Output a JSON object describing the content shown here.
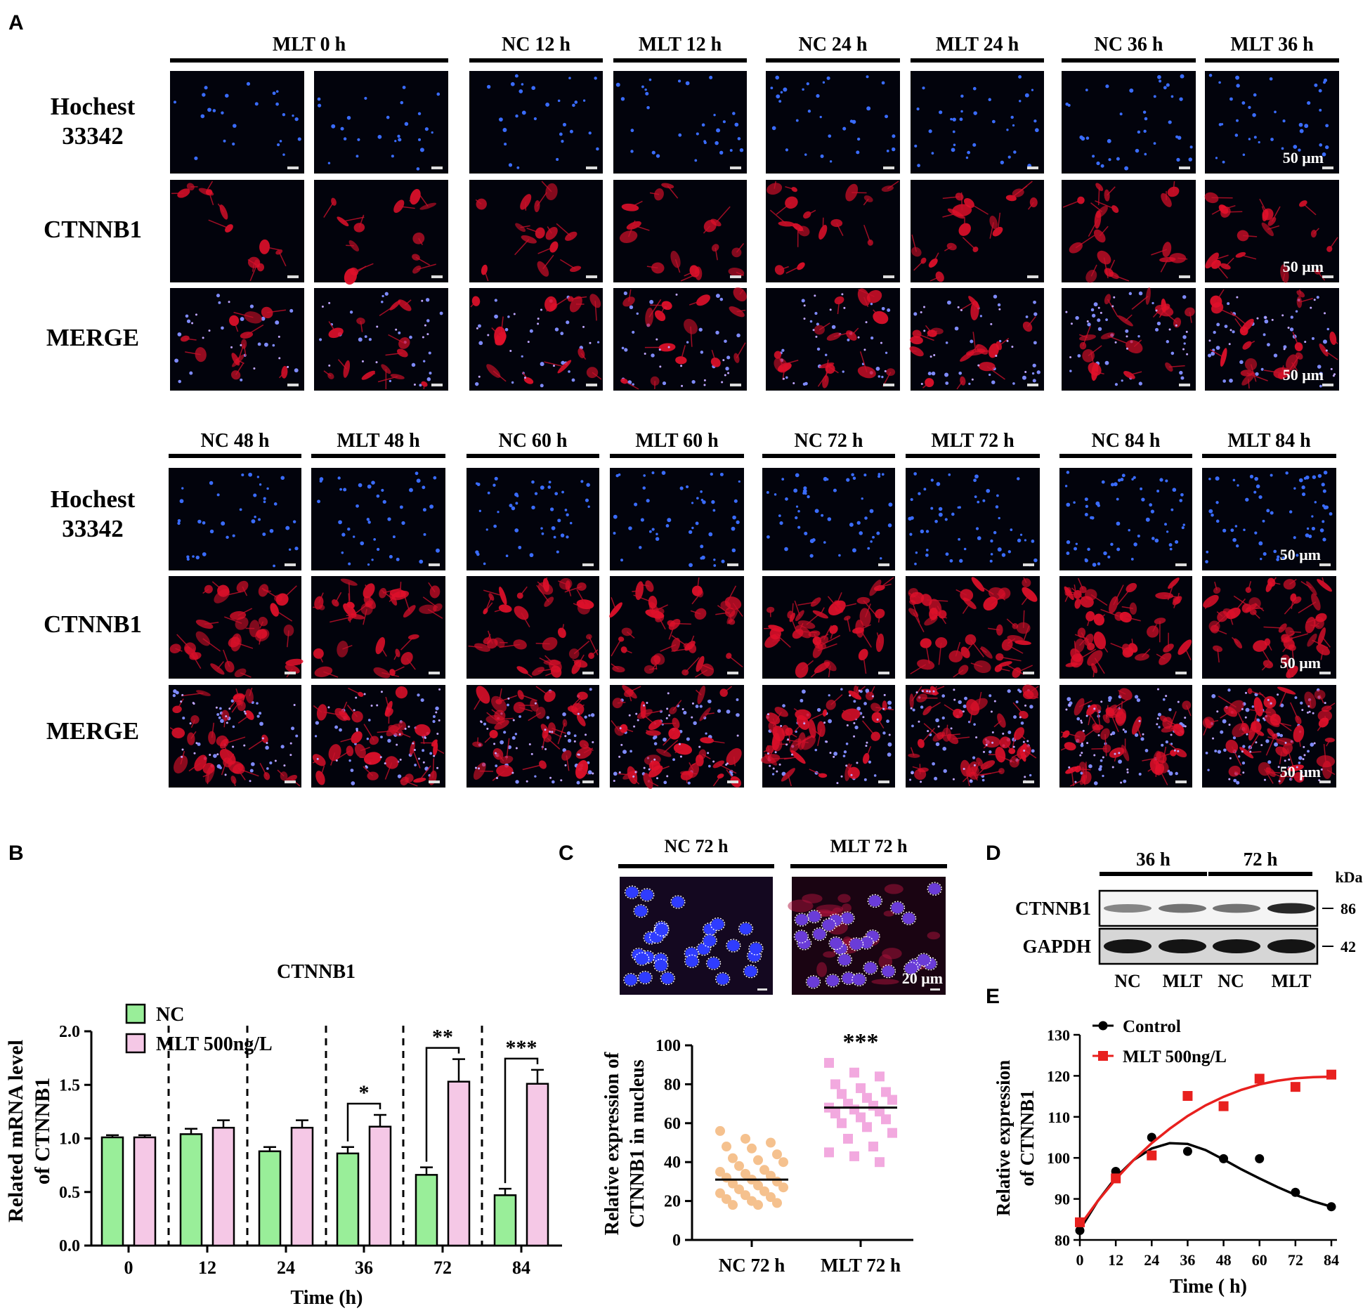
{
  "panel_letters": [
    "A",
    "B",
    "C",
    "D",
    "E"
  ],
  "panel_a": {
    "rows": [
      {
        "groups": [
          {
            "label": "MLT 0 h",
            "span": 2
          },
          {
            "label": "NC 12 h",
            "span": 1
          },
          {
            "label": "MLT 12 h",
            "span": 1
          },
          {
            "label": "NC 24 h",
            "span": 1
          },
          {
            "label": "MLT 24 h",
            "span": 1
          },
          {
            "label": "NC 36 h",
            "span": 1
          },
          {
            "label": "MLT 36 h",
            "span": 1
          }
        ],
        "channel_labels": [
          [
            "Hochest",
            "33342"
          ],
          [
            "CTNNB1"
          ],
          [
            "MERGE"
          ]
        ]
      },
      {
        "groups": [
          {
            "label": "NC 48 h",
            "span": 1
          },
          {
            "label": "MLT 48 h",
            "span": 1
          },
          {
            "label": "NC 60 h",
            "span": 1
          },
          {
            "label": "MLT 60 h",
            "span": 1
          },
          {
            "label": "NC 72 h",
            "span": 1
          },
          {
            "label": "MLT 72 h",
            "span": 1
          },
          {
            "label": "NC 84 h",
            "span": 1
          },
          {
            "label": "MLT 84 h",
            "span": 1
          }
        ],
        "channel_labels": [
          [
            "Hochest",
            "33342"
          ],
          [
            "CTNNB1"
          ],
          [
            "MERGE"
          ]
        ]
      }
    ],
    "scale_bar_label": "50 μm"
  },
  "chart_data": [
    {
      "panel": "B",
      "type": "bar",
      "title": "CTNNB1",
      "xlabel": "Time (h)",
      "ylabel": "Related mRNA level of CTNNB1",
      "ylim": [
        0,
        2.0
      ],
      "yticks": [
        "0.0",
        "0.5",
        "1.0",
        "1.5",
        "2.0"
      ],
      "categories": [
        "0",
        "12",
        "24",
        "36",
        "72",
        "84"
      ],
      "series": [
        {
          "name": "NC",
          "color": "#99ee99",
          "values": [
            1.01,
            1.04,
            0.88,
            0.86,
            0.66,
            0.47
          ],
          "errors": [
            0.02,
            0.05,
            0.04,
            0.06,
            0.07,
            0.06
          ]
        },
        {
          "name": "MLT 500ng/L",
          "color": "#f5c8e6",
          "values": [
            1.01,
            1.1,
            1.1,
            1.11,
            1.53,
            1.51
          ],
          "errors": [
            0.02,
            0.07,
            0.07,
            0.11,
            0.21,
            0.13
          ]
        }
      ],
      "significance": [
        "",
        "",
        "",
        "*",
        "**",
        "***"
      ],
      "legend": "top-left"
    },
    {
      "panel": "C",
      "type": "scatter",
      "image_headers": [
        "NC 72 h",
        "MLT 72 h"
      ],
      "scale_bar_label": "20 μm",
      "ylabel": "Relative expression of CTNNB1 in nucleus",
      "ylim": [
        0,
        100
      ],
      "yticks": [
        "0",
        "20",
        "40",
        "60",
        "80",
        "100"
      ],
      "categories": [
        "NC 72 h",
        "MLT 72 h"
      ],
      "series": [
        {
          "name": "NC 72 h",
          "color": "#f5c18e",
          "marker": "circle",
          "mean": 31,
          "values": [
            56,
            52,
            50,
            48,
            47,
            44,
            42,
            41,
            40,
            38,
            36,
            35,
            34,
            33,
            32,
            31,
            30,
            29,
            28,
            27,
            26,
            25,
            24,
            23,
            22,
            21,
            20,
            19,
            18,
            18
          ]
        },
        {
          "name": "MLT 72 h",
          "color": "#f2a9df",
          "marker": "square",
          "mean": 68,
          "values": [
            91,
            86,
            84,
            80,
            78,
            76,
            75,
            73,
            72,
            70,
            69,
            68,
            67,
            66,
            65,
            63,
            62,
            60,
            58,
            55,
            52,
            48,
            45,
            43,
            40
          ]
        }
      ],
      "significance": "***"
    },
    {
      "panel": "D",
      "type": "table",
      "time_headers": [
        "36 h",
        "72 h"
      ],
      "rows": [
        "CTNNB1",
        "GAPDH"
      ],
      "lane_labels": [
        "NC",
        "MLT",
        "NC",
        "MLT"
      ],
      "unit_label": "kDa",
      "markers": [
        "86",
        "42"
      ],
      "band_intensity": {
        "CTNNB1": [
          0.35,
          0.45,
          0.45,
          0.85
        ],
        "GAPDH": [
          0.95,
          0.95,
          0.95,
          0.95
        ]
      }
    },
    {
      "panel": "E",
      "type": "line",
      "xlabel": "Time ( h)",
      "ylabel": "Relative expression of CTNNB1",
      "xlim": [
        0,
        84
      ],
      "ylim": [
        80,
        130
      ],
      "xticks": [
        "0",
        "12",
        "24",
        "36",
        "48",
        "60",
        "72",
        "84"
      ],
      "yticks": [
        "80",
        "90",
        "100",
        "110",
        "120",
        "130"
      ],
      "series": [
        {
          "name": "Control",
          "color": "#000000",
          "marker": "circle",
          "x": [
            0,
            12,
            24,
            36,
            48,
            60,
            72,
            84
          ],
          "y": [
            82.3,
            96.7,
            105.0,
            101.6,
            99.8,
            99.8,
            91.6,
            88.1
          ],
          "fit": [
            [
              0,
              82.5
            ],
            [
              6,
              89.5
            ],
            [
              12,
              95.2
            ],
            [
              18,
              99.5
            ],
            [
              24,
              102.3
            ],
            [
              30,
              103.6
            ],
            [
              36,
              103.4
            ],
            [
              42,
              101.9
            ],
            [
              48,
              99.6
            ],
            [
              54,
              97.2
            ],
            [
              60,
              95.0
            ],
            [
              66,
              92.9
            ],
            [
              72,
              91.0
            ],
            [
              78,
              89.4
            ],
            [
              84,
              88.1
            ]
          ]
        },
        {
          "name": "MLT 500ng/L",
          "color": "#e8201e",
          "marker": "square",
          "x": [
            0,
            12,
            24,
            36,
            48,
            60,
            72,
            84
          ],
          "y": [
            84.3,
            95.0,
            100.6,
            115.1,
            112.6,
            119.3,
            117.3,
            120.3
          ],
          "fit": [
            [
              0,
              83.5
            ],
            [
              6,
              89.5
            ],
            [
              12,
              94.8
            ],
            [
              18,
              99.5
            ],
            [
              24,
              103.6
            ],
            [
              30,
              107.1
            ],
            [
              36,
              110.2
            ],
            [
              42,
              112.8
            ],
            [
              48,
              114.9
            ],
            [
              54,
              116.6
            ],
            [
              60,
              117.9
            ],
            [
              66,
              118.8
            ],
            [
              72,
              119.4
            ],
            [
              78,
              119.7
            ],
            [
              84,
              119.8
            ]
          ]
        }
      ],
      "legend": "top-left"
    }
  ]
}
